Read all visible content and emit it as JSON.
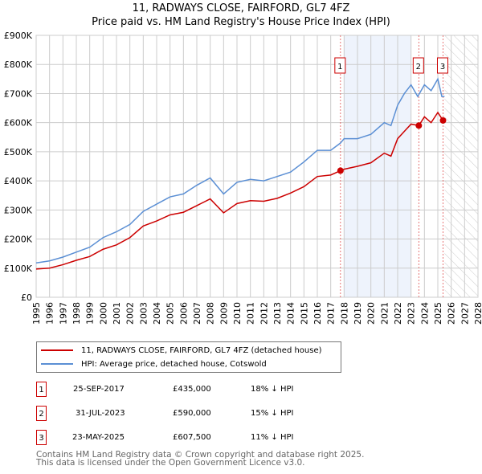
{
  "chart_data": {
    "type": "line",
    "title": "11, RADWAYS CLOSE, FAIRFORD, GL7 4FZ",
    "subtitle": "Price paid vs. HM Land Registry's House Price Index (HPI)",
    "xlim": [
      1995,
      2028
    ],
    "ylim": [
      0,
      900000
    ],
    "y_ticks": [
      0,
      100000,
      200000,
      300000,
      400000,
      500000,
      600000,
      700000,
      800000,
      900000
    ],
    "y_tick_labels": [
      "£0",
      "£100K",
      "£200K",
      "£300K",
      "£400K",
      "£500K",
      "£600K",
      "£700K",
      "£800K",
      "£900K"
    ],
    "x_ticks": [
      1995,
      1996,
      1997,
      1998,
      1999,
      2000,
      2001,
      2002,
      2003,
      2004,
      2005,
      2006,
      2007,
      2008,
      2009,
      2010,
      2011,
      2012,
      2013,
      2014,
      2015,
      2016,
      2017,
      2018,
      2019,
      2020,
      2021,
      2022,
      2023,
      2024,
      2025,
      2026,
      2027,
      2028
    ],
    "grid": true,
    "shaded_ranges": [
      [
        2018,
        2023
      ]
    ],
    "hatched_from": 2025.5,
    "series": [
      {
        "name": "11, RADWAYS CLOSE, FAIRFORD, GL7 4FZ (detached house)",
        "color": "#cc0000",
        "x": [
          1995,
          1996,
          1997,
          1998,
          1999,
          2000,
          2001,
          2002,
          2003,
          2004,
          2005,
          2006,
          2007,
          2008,
          2009,
          2010,
          2011,
          2012,
          2013,
          2014,
          2015,
          2016,
          2017,
          2017.73,
          2018,
          2019,
          2020,
          2021,
          2021.5,
          2022,
          2022.5,
          2023,
          2023.58,
          2024,
          2024.5,
          2025,
          2025.39
        ],
        "y": [
          97000,
          100000,
          112000,
          127000,
          140000,
          165000,
          180000,
          205000,
          245000,
          262000,
          283000,
          292000,
          315000,
          338000,
          290000,
          322000,
          332000,
          330000,
          340000,
          358000,
          380000,
          415000,
          420000,
          435000,
          440000,
          450000,
          462000,
          495000,
          485000,
          545000,
          570000,
          595000,
          590000,
          620000,
          600000,
          635000,
          607500
        ]
      },
      {
        "name": "HPI: Average price, detached house, Cotswold",
        "color": "#5b8fd4",
        "x": [
          1995,
          1996,
          1997,
          1998,
          1999,
          2000,
          2001,
          2002,
          2003,
          2004,
          2005,
          2006,
          2007,
          2008,
          2009,
          2010,
          2011,
          2012,
          2013,
          2014,
          2015,
          2016,
          2017,
          2017.73,
          2018,
          2019,
          2020,
          2021,
          2021.5,
          2022,
          2022.5,
          2023,
          2023.5,
          2024,
          2024.5,
          2025,
          2025.3,
          2025.5
        ],
        "y": [
          118000,
          125000,
          138000,
          155000,
          172000,
          205000,
          225000,
          250000,
          295000,
          320000,
          345000,
          355000,
          385000,
          410000,
          355000,
          395000,
          405000,
          400000,
          415000,
          430000,
          465000,
          505000,
          505000,
          530000,
          545000,
          545000,
          560000,
          600000,
          590000,
          660000,
          700000,
          730000,
          690000,
          730000,
          710000,
          750000,
          690000,
          690000
        ]
      }
    ],
    "sales": [
      {
        "label": "1",
        "date": "25-SEP-2017",
        "x": 2017.73,
        "price": "£435,000",
        "price_value": 435000,
        "hpi": "18% ↓ HPI"
      },
      {
        "label": "2",
        "date": "31-JUL-2023",
        "x": 2023.58,
        "price": "£590,000",
        "price_value": 590000,
        "hpi": "15% ↓ HPI"
      },
      {
        "label": "3",
        "date": "23-MAY-2025",
        "x": 2025.39,
        "price": "£607,500",
        "price_value": 607500,
        "hpi": "11% ↓ HPI"
      }
    ]
  },
  "footer": {
    "line1": "Contains HM Land Registry data © Crown copyright and database right 2025.",
    "line2": "This data is licensed under the Open Government Licence v3.0."
  }
}
